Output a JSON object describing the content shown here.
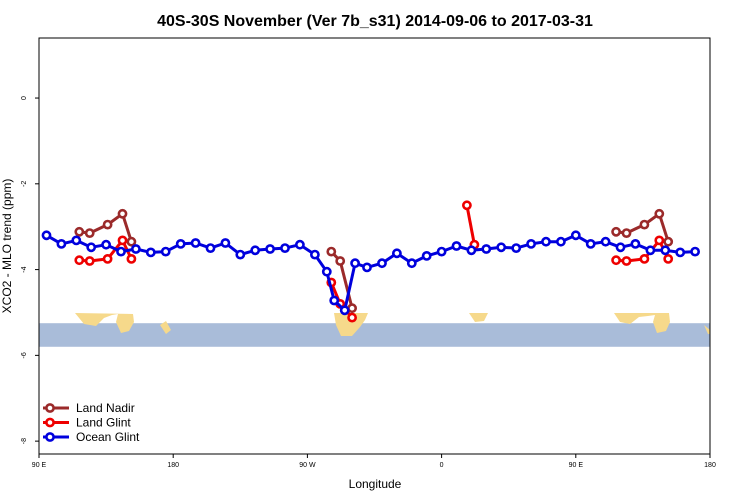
{
  "chart_data": {
    "type": "line",
    "title": "40S-30S November (Ver 7b_s31)   2014-09-06 to 2017-03-31",
    "xlabel": "Longitude",
    "ylabel": "XCO2 - MLO trend (ppm)",
    "xlim": [
      90,
      540
    ],
    "ylim": [
      -8.3,
      1.4
    ],
    "x_ticks": [
      {
        "value": 90,
        "label": "90 E"
      },
      {
        "value": 180,
        "label": "180"
      },
      {
        "value": 270,
        "label": "90 W"
      },
      {
        "value": 360,
        "label": "0"
      },
      {
        "value": 450,
        "label": "90 E"
      },
      {
        "value": 540,
        "label": "180"
      }
    ],
    "y_ticks": [
      {
        "value": 0,
        "label": "0"
      },
      {
        "value": -2,
        "label": "-2"
      },
      {
        "value": -4,
        "label": "-4"
      },
      {
        "value": -6,
        "label": "-6"
      },
      {
        "value": -8,
        "label": "-8"
      }
    ],
    "map_band": {
      "y_top": -5.25,
      "y_bottom": -5.8,
      "ocean_color": "#a9bcd9",
      "land_color": "#f6d98b"
    },
    "legend_position": "bottom-left",
    "series": [
      {
        "name": "Land Nadir",
        "color": "#9b2a2a",
        "segments": [
          [
            [
              117,
              -3.12
            ],
            [
              124,
              -3.15
            ],
            [
              136,
              -2.95
            ],
            [
              146,
              -2.7
            ],
            [
              152,
              -3.35
            ]
          ],
          [
            [
              286,
              -3.58
            ],
            [
              292,
              -3.8
            ],
            [
              300,
              -4.9
            ]
          ],
          [
            [
              477,
              -3.12
            ],
            [
              484,
              -3.15
            ],
            [
              496,
              -2.95
            ],
            [
              506,
              -2.7
            ],
            [
              512,
              -3.35
            ]
          ]
        ]
      },
      {
        "name": "Land Glint",
        "color": "#ee0000",
        "segments": [
          [
            [
              117,
              -3.78
            ],
            [
              124,
              -3.8
            ],
            [
              136,
              -3.75
            ],
            [
              146,
              -3.32
            ],
            [
              152,
              -3.75
            ]
          ],
          [
            [
              286,
              -4.3
            ],
            [
              292,
              -4.8
            ],
            [
              300,
              -5.12
            ]
          ],
          [
            [
              377,
              -2.5
            ],
            [
              382,
              -3.42
            ]
          ],
          [
            [
              477,
              -3.78
            ],
            [
              484,
              -3.8
            ],
            [
              496,
              -3.75
            ],
            [
              506,
              -3.32
            ],
            [
              512,
              -3.75
            ]
          ]
        ]
      },
      {
        "name": "Ocean Glint",
        "color": "#0000dd",
        "segments": [
          [
            [
              95,
              -3.2
            ],
            [
              105,
              -3.4
            ],
            [
              115,
              -3.32
            ],
            [
              125,
              -3.48
            ],
            [
              135,
              -3.42
            ],
            [
              145,
              -3.58
            ],
            [
              155,
              -3.52
            ],
            [
              165,
              -3.6
            ],
            [
              175,
              -3.58
            ],
            [
              185,
              -3.4
            ],
            [
              195,
              -3.38
            ],
            [
              205,
              -3.5
            ],
            [
              215,
              -3.38
            ],
            [
              225,
              -3.65
            ],
            [
              235,
              -3.55
            ],
            [
              245,
              -3.52
            ],
            [
              255,
              -3.5
            ],
            [
              265,
              -3.42
            ],
            [
              275,
              -3.65
            ],
            [
              283,
              -4.05
            ],
            [
              288,
              -4.72
            ],
            [
              295,
              -4.95
            ],
            [
              302,
              -3.85
            ],
            [
              310,
              -3.95
            ],
            [
              320,
              -3.85
            ],
            [
              330,
              -3.62
            ],
            [
              340,
              -3.85
            ],
            [
              350,
              -3.68
            ],
            [
              360,
              -3.58
            ],
            [
              370,
              -3.45
            ],
            [
              380,
              -3.55
            ],
            [
              390,
              -3.52
            ],
            [
              400,
              -3.48
            ],
            [
              410,
              -3.5
            ],
            [
              420,
              -3.4
            ],
            [
              430,
              -3.35
            ],
            [
              440,
              -3.35
            ],
            [
              450,
              -3.2
            ],
            [
              460,
              -3.4
            ],
            [
              470,
              -3.35
            ],
            [
              480,
              -3.48
            ],
            [
              490,
              -3.4
            ],
            [
              500,
              -3.55
            ],
            [
              510,
              -3.55
            ],
            [
              520,
              -3.6
            ],
            [
              530,
              -3.58
            ]
          ]
        ]
      }
    ]
  }
}
